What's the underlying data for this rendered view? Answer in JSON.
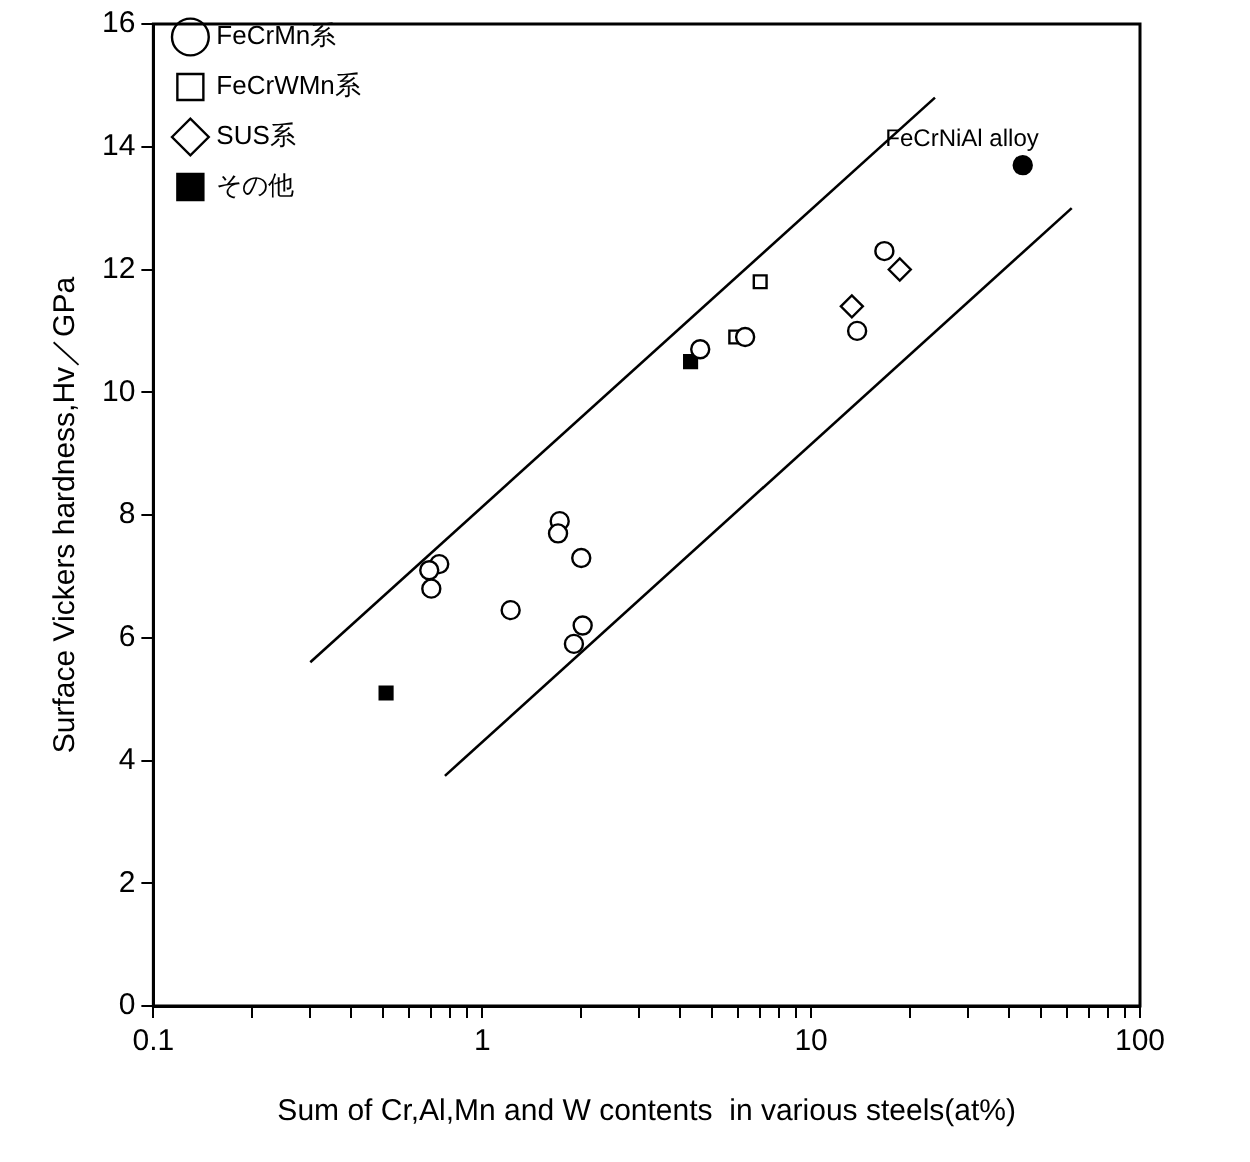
{
  "chart_data": {
    "type": "scatter",
    "xlabel": "Sum of Cr,Al,Mn and W contents  in various steels(at%)",
    "ylabel": "Surface Vickers hardness,Hv／GPa",
    "log": "x",
    "xlim": [
      0.1,
      100
    ],
    "ylim": [
      0,
      16
    ],
    "xticks": [
      0.1,
      {
        "value": 0.2,
        "label": null
      },
      {
        "value": 0.3,
        "label": null
      },
      {
        "value": 0.4,
        "label": null
      },
      {
        "value": 0.5,
        "label": null
      },
      {
        "value": 0.6,
        "label": null
      },
      {
        "value": 0.7,
        "label": null
      },
      {
        "value": 0.8,
        "label": null
      },
      {
        "value": 0.9,
        "label": null
      },
      1,
      {
        "value": 2,
        "label": null
      },
      {
        "value": 3,
        "label": null
      },
      {
        "value": 4,
        "label": null
      },
      {
        "value": 5,
        "label": null
      },
      {
        "value": 6,
        "label": null
      },
      {
        "value": 7,
        "label": null
      },
      {
        "value": 8,
        "label": null
      },
      {
        "value": 9,
        "label": null
      },
      10,
      {
        "value": 20,
        "label": null
      },
      {
        "value": 30,
        "label": null
      },
      {
        "value": 40,
        "label": null
      },
      {
        "value": 50,
        "label": null
      },
      {
        "value": 60,
        "label": null
      },
      {
        "value": 70,
        "label": null
      },
      {
        "value": 80,
        "label": null
      },
      {
        "value": 90,
        "label": null
      },
      100
    ],
    "yticks": [
      0,
      2,
      4,
      6,
      8,
      10,
      12,
      14,
      16
    ],
    "grid": false,
    "legend": "top left",
    "series": [
      {
        "name": "FeCrMn系",
        "marker": "circle",
        "color": "#ffffff",
        "x": [
          16.7,
          13.8,
          6.3,
          4.6,
          1.72,
          1.7,
          2.0,
          0.74,
          0.69,
          0.7,
          1.22,
          2.02,
          1.9
        ],
        "values": [
          12.3,
          11.0,
          10.9,
          10.7,
          7.9,
          7.7,
          7.3,
          7.2,
          7.1,
          6.8,
          6.45,
          6.2,
          5.9
        ]
      },
      {
        "name": "FeCrWMn系",
        "marker": "square",
        "color": "#ffffff",
        "x": [
          7.0,
          5.9
        ],
        "values": [
          11.8,
          10.9
        ]
      },
      {
        "name": "SUS系",
        "marker": "diamond",
        "color": "#ffffff",
        "x": [
          13.3,
          18.6
        ],
        "values": [
          11.4,
          12.0
        ]
      },
      {
        "name": "その他",
        "marker": "square",
        "color": "#000000",
        "x": [
          4.3,
          0.51
        ],
        "values": [
          10.5,
          5.1
        ]
      },
      {
        "marker": "circle",
        "color": "#000000",
        "x": [
          44
        ],
        "values": [
          13.7
        ]
      },
      {
        "type": "line",
        "marker": "none",
        "color": "#000000",
        "x": [
          0.3,
          23.8
        ],
        "values": [
          5.6,
          14.8
        ]
      },
      {
        "type": "line",
        "marker": "none",
        "color": "#000000",
        "x": [
          0.77,
          62
        ],
        "values": [
          3.75,
          13.0
        ]
      }
    ],
    "annotations": [
      {
        "text": "FeCrNiAl alloy",
        "x": 44,
        "y": 13.7
      }
    ]
  }
}
